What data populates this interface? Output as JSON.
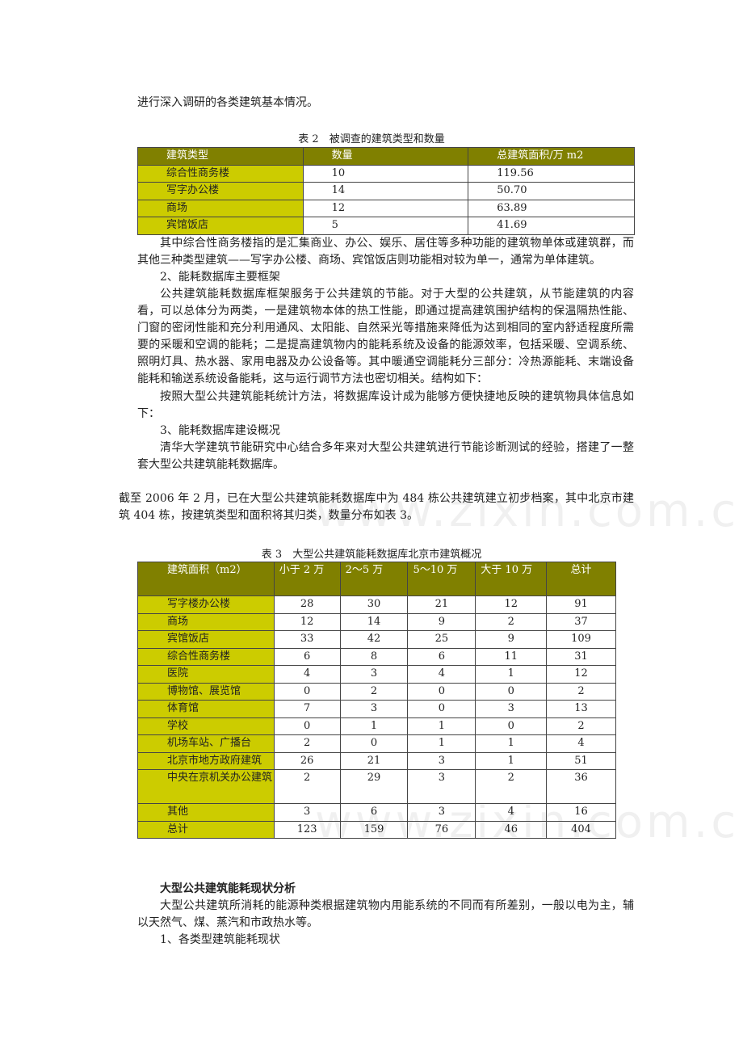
{
  "intro_line": "进行深入调研的各类建筑基本情况。",
  "table2": {
    "caption": "表 2　被调查的建筑类型和数量",
    "headers": [
      "建筑类型",
      "数量",
      "总建筑面积/万 m2"
    ],
    "rows": [
      [
        "综合性商务楼",
        "10",
        "119.56"
      ],
      [
        "写字办公楼",
        "14",
        "50.70"
      ],
      [
        "商场",
        "12",
        "63.89"
      ],
      [
        "宾馆饭店",
        "5",
        "41.69"
      ]
    ]
  },
  "para1": "其中综合性商务楼指的是汇集商业、办公、娱乐、居住等多种功能的建筑物单体或建筑群，而其他三种类型建筑——写字办公楼、商场、宾馆饭店则功能相对较为单一，通常为单体建筑。",
  "heading2": "2、能耗数据库主要框架",
  "para2": "公共建筑能耗数据库框架服务于公共建筑的节能。对于大型的公共建筑，从节能建筑的内容看，可以总体分为两类，一是建筑物本体的热工性能，即通过提高建筑围护结构的保温隔热性能、门窗的密闭性能和充分利用通风、太阳能、自然采光等措施来降低为达到相同的室内舒适程度所需要的采暖和空调的能耗；二是提高建筑物内的能耗系统及设备的能源效率，包括采暖、空调系统、照明灯具、热水器、家用电器及办公设备等。其中暖通空调能耗分三部分：冷热源能耗、末端设备能耗和输送系统设备能耗，这与运行调节方法也密切相关。结构如下：",
  "para3": "按照大型公共建筑能耗统计方法，将数据库设计成为能够方便快捷地反映的建筑物具体信息如下：",
  "heading3": "3、能耗数据库建设概况",
  "para4": "清华大学建筑节能研究中心结合多年来对大型公共建筑进行节能诊断测试的经验，搭建了一整套大型公共建筑能耗数据库。",
  "para5": "截至 2006 年 2 月，已在大型公共建筑能耗数据库中为 484 栋公共建筑建立初步档案，其中北京市建筑 404 栋，按建筑类型和面积将其归类，数量分布如表 3。",
  "table3": {
    "caption": "表 3　大型公共建筑能耗数据库北京市建筑概况",
    "headers": [
      "建筑面积（m2）",
      "小于 2 万",
      "2～5 万",
      "5～10 万",
      "大于 10 万",
      "总计"
    ],
    "rows": [
      [
        "写字楼办公楼",
        "28",
        "30",
        "21",
        "12",
        "91"
      ],
      [
        "商场",
        "12",
        "14",
        "9",
        "2",
        "37"
      ],
      [
        "宾馆饭店",
        "33",
        "42",
        "25",
        "9",
        "109"
      ],
      [
        "综合性商务楼",
        "6",
        "8",
        "6",
        "11",
        "31"
      ],
      [
        "医院",
        "4",
        "3",
        "4",
        "1",
        "12"
      ],
      [
        "博物馆、展览馆",
        "0",
        "2",
        "0",
        "0",
        "2"
      ],
      [
        "体育馆",
        "7",
        "3",
        "0",
        "3",
        "13"
      ],
      [
        "学校",
        "0",
        "1",
        "1",
        "0",
        "2"
      ],
      [
        "机场车站、广播台",
        "2",
        "0",
        "1",
        "1",
        "4"
      ],
      [
        "北京市地方政府建筑",
        "26",
        "21",
        "3",
        "1",
        "51"
      ],
      [
        "中央在京机关办公建筑",
        "2",
        "29",
        "3",
        "2",
        "36"
      ],
      [
        "其他",
        "3",
        "6",
        "3",
        "4",
        "16"
      ],
      [
        "总计",
        "123",
        "159",
        "76",
        "46",
        "404"
      ]
    ]
  },
  "section_title": "大型公共建筑能耗现状分析",
  "para6": "大型公共建筑所消耗的能源种类根据建筑物内用能系统的不同而有所差别，一般以电为主，辅以天然气、煤、蒸汽和市政热水等。",
  "heading4": "1、各类型建筑能耗现状",
  "watermark": "www.zixin.com.cn",
  "colors": {
    "header_bg": "#808000",
    "name_bg": "#cccc00"
  }
}
